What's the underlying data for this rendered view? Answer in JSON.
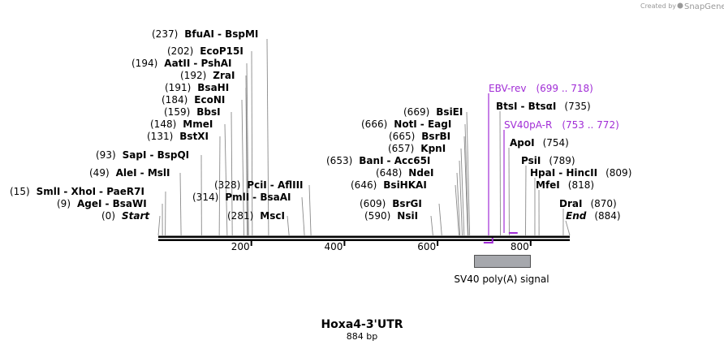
{
  "credit": {
    "prefix": "Created by",
    "brand": "SnapGene"
  },
  "plasmid": {
    "name": "Hoxa4-3'UTR",
    "size_label": "884 bp",
    "length": 884
  },
  "axis": {
    "ticks": [
      200,
      400,
      600,
      800
    ]
  },
  "sites": [
    {
      "pos": "(237)",
      "names": [
        "BfuAI",
        "BspMI"
      ]
    },
    {
      "pos": "(202)",
      "names": [
        "EcoP15I"
      ]
    },
    {
      "pos": "(194)",
      "names": [
        "AatII",
        "PshAI"
      ]
    },
    {
      "pos": "(192)",
      "names": [
        "ZraI"
      ]
    },
    {
      "pos": "(191)",
      "names": [
        "BsaHI"
      ]
    },
    {
      "pos": "(184)",
      "names": [
        "EcoNI"
      ]
    },
    {
      "pos": "(159)",
      "names": [
        "BbsI"
      ]
    },
    {
      "pos": "(148)",
      "names": [
        "MmeI"
      ]
    },
    {
      "pos": "(131)",
      "names": [
        "BstXI"
      ]
    },
    {
      "pos": "(93)",
      "names": [
        "SapI",
        "BspQI"
      ]
    },
    {
      "pos": "(49)",
      "names": [
        "AleI",
        "MslI"
      ]
    },
    {
      "pos": "(15)",
      "names": [
        "SmlI",
        "XhoI",
        "PaeR7I"
      ]
    },
    {
      "pos": "(9)",
      "names": [
        "AgeI",
        "BsaWI"
      ]
    },
    {
      "pos": "(0)",
      "names": [
        "Start"
      ],
      "italic": true
    },
    {
      "pos": "(328)",
      "names": [
        "PciI",
        "AflIII"
      ]
    },
    {
      "pos": "(314)",
      "names": [
        "PmlI",
        "BsaAI"
      ]
    },
    {
      "pos": "(281)",
      "names": [
        "MscI"
      ]
    },
    {
      "pos": "(669)",
      "names": [
        "BsiEI"
      ]
    },
    {
      "pos": "(666)",
      "names": [
        "NotI",
        "EagI"
      ]
    },
    {
      "pos": "(665)",
      "names": [
        "BsrBI"
      ]
    },
    {
      "pos": "(657)",
      "names": [
        "KpnI"
      ]
    },
    {
      "pos": "(653)",
      "names": [
        "BanI",
        "Acc65I"
      ]
    },
    {
      "pos": "(648)",
      "names": [
        "NdeI"
      ]
    },
    {
      "pos": "(646)",
      "names": [
        "BsiHKAI"
      ]
    },
    {
      "pos": "(609)",
      "names": [
        "BsrGI"
      ]
    },
    {
      "pos": "(590)",
      "names": [
        "NsiI"
      ]
    },
    {
      "pos": "(735)",
      "names": [
        "BtsI",
        "BtsαI"
      ]
    },
    {
      "pos": "(754)",
      "names": [
        "ApoI"
      ]
    },
    {
      "pos": "(789)",
      "names": [
        "PsiI"
      ]
    },
    {
      "pos": "(809)",
      "names": [
        "HpaI",
        "HincII"
      ]
    },
    {
      "pos": "(818)",
      "names": [
        "MfeI"
      ]
    },
    {
      "pos": "(870)",
      "names": [
        "DraI"
      ]
    },
    {
      "pos": "(884)",
      "names": [
        "End"
      ],
      "italic": true
    }
  ],
  "primers": [
    {
      "name": "EBV-rev",
      "range": "(699 .. 718)"
    },
    {
      "name": "SV40pA-R",
      "range": "(753 .. 772)"
    }
  ],
  "features": [
    {
      "name": "SV40 poly(A) signal"
    }
  ],
  "colors": {
    "primer": "#a12dd6",
    "feature_fill": "#a6a8ad",
    "backbone": "#000000"
  }
}
